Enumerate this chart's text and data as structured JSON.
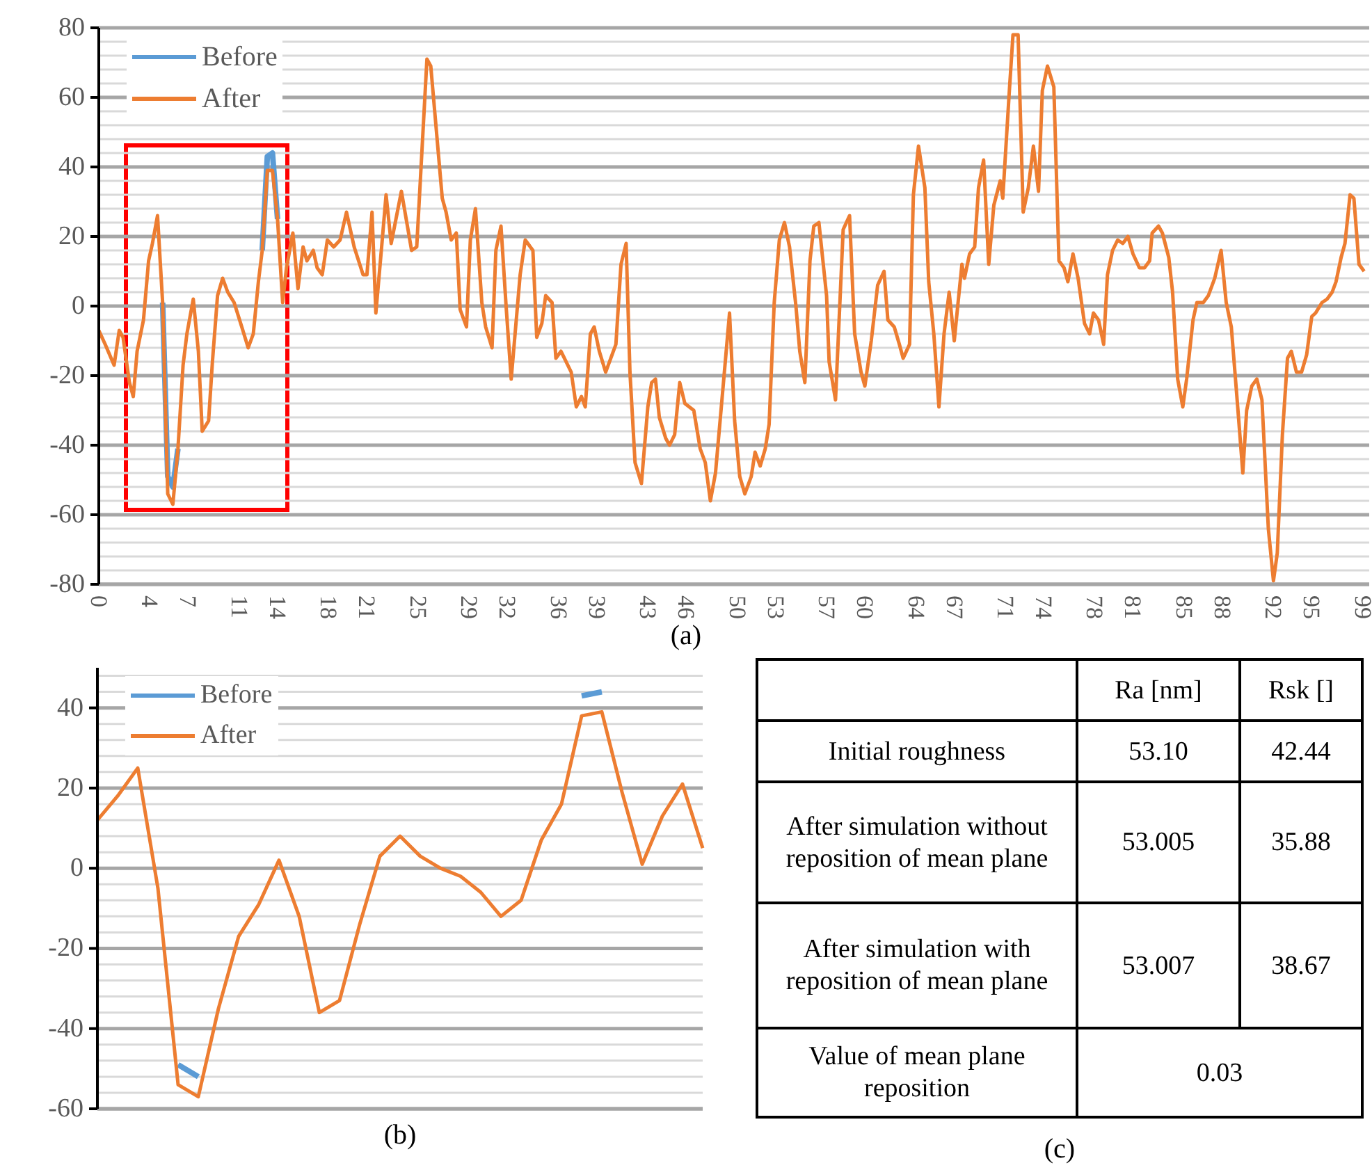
{
  "chart_data": [
    {
      "type": "line",
      "x": [
        0,
        0.5,
        1.2,
        1.6,
        1.9,
        2.4,
        2.7,
        3.0,
        3.5,
        3.9,
        4.2,
        4.6,
        5.0,
        5.4,
        5.8,
        6.2,
        6.6,
        6.9,
        7.4,
        7.8,
        8.1,
        8.6,
        8.9,
        9.3,
        9.7,
        10.1,
        10.6,
        11.2,
        11.7,
        12.1,
        12.5,
        12.8,
        13.2,
        13.6,
        14.0,
        14.4,
        14.7,
        15.2,
        15.6,
        16.0,
        16.3,
        16.8,
        17.1,
        17.5,
        17.9,
        18.4,
        18.9,
        19.4,
        20.0,
        20.7,
        21.0,
        21.4,
        21.7,
        22.2,
        22.5,
        22.9,
        23.7,
        24.5,
        24.9,
        25.7,
        26.0,
        26.9,
        27.2,
        27.6,
        28.0,
        28.3,
        28.8,
        29.1,
        29.5,
        30.0,
        30.3,
        30.8,
        31.1,
        31.5,
        31.9,
        32.3,
        33.0,
        33.4,
        34.0,
        34.3,
        34.7,
        35.0,
        35.5,
        35.8,
        36.2,
        37.0,
        37.4,
        37.8,
        38.1,
        38.5,
        38.8,
        39.2,
        39.7,
        40.5,
        40.9,
        41.3,
        41.6,
        42.0,
        42.5,
        43.0,
        43.3,
        43.6,
        43.9,
        44.4,
        44.7,
        45.1,
        45.5,
        45.9,
        46.6,
        47.1,
        47.5,
        47.9,
        48.3,
        48.9,
        49.4,
        49.8,
        50.2,
        50.6,
        51.1,
        51.4,
        51.8,
        52.2,
        52.5,
        52.9,
        53.3,
        53.7,
        54.1,
        54.6,
        54.9,
        55.3,
        55.7,
        56.0,
        56.4,
        57.0,
        57.2,
        57.7,
        58.3,
        58.8,
        59.2,
        59.7,
        60.0,
        60.5,
        61.0,
        61.5,
        61.8,
        62.3,
        62.7,
        63.0,
        63.5,
        63.8,
        64.2,
        64.7,
        65.0,
        65.4,
        65.8,
        66.2,
        66.6,
        67.0,
        67.6,
        67.8,
        68.2,
        68.6,
        68.9,
        69.3,
        69.7,
        70.1,
        70.6,
        70.8,
        71.3,
        71.6,
        72.0,
        72.4,
        72.8,
        73.2,
        73.6,
        73.9,
        74.3,
        74.8,
        75.2,
        75.6,
        75.9,
        76.3,
        76.7,
        77.2,
        77.6,
        77.9,
        78.3,
        78.7,
        79.0,
        79.4,
        79.8,
        80.2,
        80.6,
        81.0,
        81.5,
        81.9,
        82.3,
        82.5,
        83.0,
        83.3,
        83.8,
        84.1,
        84.5,
        84.9,
        85.2,
        85.7,
        86.0,
        86.5,
        86.9,
        87.4,
        87.9,
        88.3,
        88.7,
        89.2,
        89.6,
        89.9,
        90.3,
        90.7,
        91.1,
        91.6,
        92.0,
        92.3,
        92.7,
        93.1,
        93.4,
        93.8,
        94.2,
        94.6,
        95.0,
        95.3,
        95.8,
        96.2,
        96.6,
        96.9,
        97.3,
        97.6,
        98.0,
        98.3,
        98.7,
        99.1
      ],
      "series": [
        {
          "name": "Before",
          "color": "#5b9bd5",
          "values": [
            null,
            null,
            null,
            null,
            null,
            null,
            null,
            null,
            null,
            null,
            null,
            null,
            1,
            -49,
            -52,
            -41,
            null,
            null,
            null,
            null,
            null,
            null,
            null,
            null,
            null,
            null,
            null,
            null,
            null,
            null,
            null,
            16,
            43,
            44,
            25,
            null,
            null,
            null,
            null,
            null,
            null,
            null,
            null,
            null,
            null,
            null,
            null,
            null,
            null,
            null,
            null,
            null,
            null,
            null,
            null,
            null,
            null,
            null,
            null,
            null,
            null,
            null,
            null,
            null,
            null,
            null,
            null,
            null,
            null,
            null,
            null,
            null,
            null,
            null,
            null,
            null,
            null,
            null,
            null,
            null,
            null,
            null,
            null,
            null,
            null,
            null,
            null,
            null,
            null,
            null,
            null,
            null,
            null,
            null,
            null,
            null,
            null,
            null,
            null,
            null,
            null,
            null,
            null,
            null,
            null,
            null,
            null,
            null,
            null,
            null,
            null,
            null,
            null,
            null,
            null,
            null,
            null,
            null,
            null,
            null,
            null,
            null,
            null,
            null,
            null,
            null,
            null,
            null,
            null,
            null,
            null,
            null,
            null,
            null,
            null,
            null,
            null,
            null,
            null,
            null,
            null,
            null,
            null,
            null,
            null,
            null,
            null,
            null,
            null,
            null,
            null,
            null,
            null,
            null,
            null,
            null,
            null,
            null,
            null,
            null,
            null,
            null,
            null,
            null,
            null,
            null,
            null,
            null,
            null,
            null,
            null,
            null,
            null,
            null,
            null,
            null,
            null,
            null,
            null,
            null,
            null,
            null,
            null,
            null,
            null,
            null,
            null,
            null,
            null,
            null,
            null,
            null,
            null,
            null,
            null,
            null,
            null,
            null,
            null,
            null,
            null,
            null,
            null,
            null,
            null,
            null,
            null,
            null,
            null,
            null,
            null,
            null,
            null,
            null,
            null,
            null,
            null,
            null,
            null,
            null,
            null,
            null,
            null,
            null,
            null,
            null,
            null,
            null,
            null,
            null,
            null,
            null,
            null,
            null,
            null,
            null,
            null,
            null,
            null,
            null
          ]
        },
        {
          "name": "After",
          "color": "#ed7d31",
          "values": [
            -7,
            -11,
            -17,
            -7,
            -9,
            -22,
            -26,
            -13,
            -4,
            13,
            18,
            26,
            1,
            -54,
            -57,
            -41,
            -17,
            -8,
            2,
            -13,
            -36,
            -33,
            -16,
            3,
            8,
            4,
            1,
            -6,
            -12,
            -8,
            7,
            16,
            39,
            39,
            25,
            1,
            11,
            21,
            5,
            17,
            13,
            16,
            11,
            9,
            19,
            17,
            19,
            27,
            17,
            9,
            9,
            27,
            -2,
            19,
            32,
            18,
            33,
            16,
            17,
            71,
            69,
            31,
            27,
            19,
            21,
            -1,
            -6,
            19,
            28,
            1,
            -6,
            -12,
            16,
            23,
            0,
            -21,
            9,
            19,
            16,
            -9,
            -5,
            3,
            1,
            -15,
            -13,
            -19,
            -29,
            -26,
            -29,
            -8,
            -6,
            -13,
            -19,
            -11,
            12,
            18,
            -19,
            -45,
            -51,
            -29,
            -22,
            -21,
            -32,
            -38,
            -40,
            -37,
            -22,
            -28,
            -30,
            -41,
            -45,
            -56,
            -48,
            -23,
            -2,
            -33,
            -49,
            -54,
            -49,
            -42,
            -46,
            -41,
            -34,
            1,
            19,
            24,
            17,
            0,
            -13,
            -22,
            13,
            23,
            24,
            3,
            -16,
            -27,
            22,
            26,
            -8,
            -19,
            -23,
            -10,
            6,
            10,
            -4,
            -6,
            -11,
            -15,
            -11,
            32,
            46,
            34,
            7,
            -8,
            -29,
            -8,
            4,
            -10,
            12,
            8,
            15,
            17,
            34,
            42,
            12,
            29,
            36,
            31,
            61,
            78,
            78,
            27,
            34,
            46,
            33,
            62,
            69,
            63,
            13,
            11,
            7,
            15,
            8,
            -5,
            -8,
            -2,
            -4,
            -11,
            9,
            16,
            19,
            18,
            20,
            15,
            11,
            11,
            13,
            21,
            23,
            21,
            14,
            4,
            -21,
            -29,
            -21,
            -4,
            1,
            1,
            3,
            8,
            16,
            1,
            -6,
            -29,
            -48,
            -30,
            -23,
            -21,
            -27,
            -64,
            -79,
            -71,
            -37,
            -15,
            -13,
            -19,
            -19,
            -14,
            -3,
            -2,
            1,
            2,
            4,
            7,
            14,
            18,
            32,
            31,
            12,
            10
          ]
        }
      ],
      "xlim": [
        0,
        99.5
      ],
      "xticks": [
        0,
        4,
        7,
        11,
        14,
        18,
        21,
        25,
        29,
        32,
        36,
        39,
        43,
        46,
        50,
        53,
        57,
        60,
        64,
        67,
        71,
        74,
        78,
        81,
        85,
        88,
        92,
        95,
        99
      ],
      "ylim": [
        -80,
        80
      ],
      "yticks": [
        -80,
        {
          "value": -76,
          "label": null
        },
        {
          "value": -72,
          "label": null
        },
        {
          "value": -68,
          "label": null
        },
        {
          "value": -64,
          "label": null
        },
        -60,
        {
          "value": -56,
          "label": null
        },
        {
          "value": -52,
          "label": null
        },
        {
          "value": -48,
          "label": null
        },
        {
          "value": -44,
          "label": null
        },
        -40,
        {
          "value": -36,
          "label": null
        },
        {
          "value": -32,
          "label": null
        },
        {
          "value": -28,
          "label": null
        },
        {
          "value": -24,
          "label": null
        },
        -20,
        {
          "value": -16,
          "label": null
        },
        {
          "value": -12,
          "label": null
        },
        {
          "value": -8,
          "label": null
        },
        {
          "value": -4,
          "label": null
        },
        0,
        {
          "value": 4,
          "label": null
        },
        {
          "value": 8,
          "label": null
        },
        {
          "value": 12,
          "label": null
        },
        {
          "value": 16,
          "label": null
        },
        20,
        {
          "value": 24,
          "label": null
        },
        {
          "value": 28,
          "label": null
        },
        {
          "value": 32,
          "label": null
        },
        {
          "value": 36,
          "label": null
        },
        40,
        {
          "value": 44,
          "label": null
        },
        {
          "value": 48,
          "label": null
        },
        {
          "value": 52,
          "label": null
        },
        {
          "value": 56,
          "label": null
        },
        60,
        {
          "value": 64,
          "label": null
        },
        {
          "value": 68,
          "label": null
        },
        {
          "value": 72,
          "label": null
        },
        {
          "value": 76,
          "label": null
        },
        80
      ],
      "grid": "y",
      "legend": "top left",
      "annotations": [
        "(a)"
      ]
    },
    {
      "type": "line",
      "categories": [
        null,
        null,
        null,
        null,
        null,
        null,
        null,
        null,
        null,
        null,
        null,
        null,
        null,
        null,
        null,
        null,
        null,
        null,
        null,
        null,
        null,
        null,
        null,
        null,
        null,
        null,
        null,
        null,
        null,
        null,
        null
      ],
      "series": [
        {
          "name": "Before",
          "color": "#5b9bd5",
          "values": [
            null,
            null,
            null,
            null,
            -49,
            -52,
            null,
            null,
            null,
            null,
            null,
            null,
            null,
            null,
            null,
            null,
            null,
            null,
            null,
            null,
            null,
            null,
            null,
            null,
            43,
            44,
            null,
            null,
            null,
            null,
            null
          ]
        },
        {
          "name": "After",
          "color": "#ed7d31",
          "values": [
            12,
            18,
            25,
            -5,
            -54,
            -57,
            -35,
            -17,
            -9,
            2,
            -12,
            -36,
            -33,
            -14,
            3,
            8,
            3,
            0,
            -2,
            -6,
            -12,
            -8,
            7,
            16,
            38,
            39,
            19,
            1,
            13,
            21,
            5
          ]
        }
      ],
      "ylim": [
        -60,
        50
      ],
      "yticks": [
        -60,
        {
          "value": -56,
          "label": null
        },
        {
          "value": -52,
          "label": null
        },
        {
          "value": -48,
          "label": null
        },
        {
          "value": -44,
          "label": null
        },
        -40,
        {
          "value": -36,
          "label": null
        },
        {
          "value": -32,
          "label": null
        },
        {
          "value": -28,
          "label": null
        },
        {
          "value": -24,
          "label": null
        },
        -20,
        {
          "value": -16,
          "label": null
        },
        {
          "value": -12,
          "label": null
        },
        {
          "value": -8,
          "label": null
        },
        {
          "value": -4,
          "label": null
        },
        0,
        {
          "value": 4,
          "label": null
        },
        {
          "value": 8,
          "label": null
        },
        {
          "value": 12,
          "label": null
        },
        {
          "value": 16,
          "label": null
        },
        20,
        {
          "value": 24,
          "label": null
        },
        {
          "value": 28,
          "label": null
        },
        {
          "value": 32,
          "label": null
        },
        {
          "value": 36,
          "label": null
        },
        40,
        {
          "value": 44,
          "label": null
        },
        {
          "value": 48,
          "label": null
        }
      ],
      "grid": "y",
      "legend": "top left",
      "annotations": [
        "(b)"
      ]
    },
    {
      "type": "other",
      "annotations": [
        "Ra [nm]",
        "Rsk []",
        "Initial roughness",
        "53.10",
        "42.44",
        "After simulation without reposition of mean plane",
        "53.005",
        "35.88",
        "After simulation with reposition of mean plane",
        "53.007",
        "38.67",
        "Value of mean plane reposition",
        "0.03",
        "(c)"
      ]
    }
  ]
}
